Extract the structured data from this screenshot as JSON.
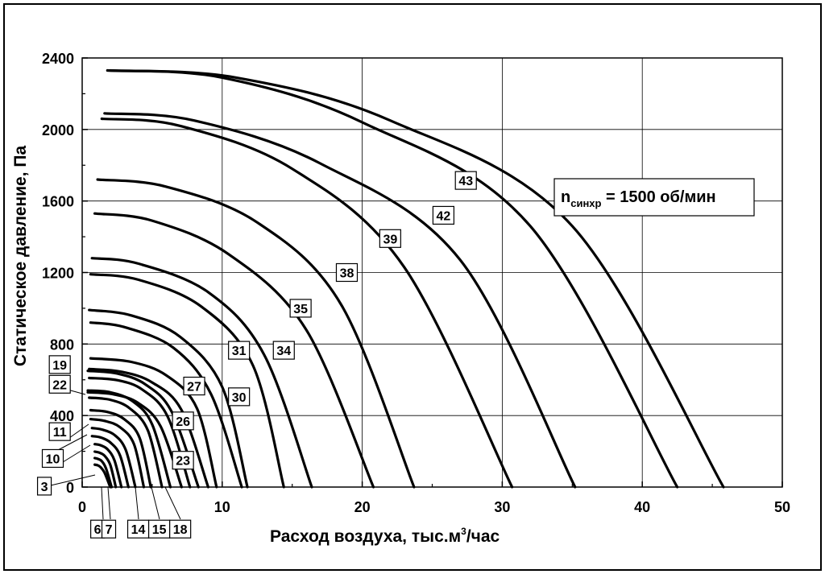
{
  "chart_data": {
    "type": "line",
    "xlabel_main": "Расход воздуха, тыс.м",
    "xlabel_sup": "3",
    "xlabel_tail": "/час",
    "ylabel": "Статическое давление, Па",
    "xlim": [
      0,
      50
    ],
    "ylim": [
      0,
      2400
    ],
    "x_ticks": [
      0,
      10,
      20,
      30,
      40,
      50
    ],
    "y_ticks": [
      0,
      400,
      800,
      1200,
      1600,
      2000,
      2400
    ],
    "grid": true,
    "annotation": {
      "n": "n",
      "sub": "синхр",
      "rest": " = 1500 об/мин"
    },
    "series": [
      {
        "name": "3",
        "x": [
          0.9,
          1.1,
          1.3,
          1.6,
          2.0
        ],
        "y": [
          125,
          122,
          112,
          80,
          0
        ]
      },
      {
        "name": "6",
        "x": [
          0.9,
          1.1,
          1.4,
          1.7,
          2.1
        ],
        "y": [
          162,
          158,
          145,
          105,
          0
        ]
      },
      {
        "name": "7",
        "x": [
          0.9,
          1.2,
          1.6,
          2.0,
          2.4
        ],
        "y": [
          198,
          193,
          175,
          125,
          0
        ]
      },
      {
        "name": "",
        "x": [
          0.9,
          1.3,
          1.8,
          2.3,
          2.8
        ],
        "y": [
          240,
          234,
          212,
          150,
          0
        ]
      },
      {
        "name": "10",
        "x": [
          0.7,
          1.3,
          2.0,
          2.7,
          3.3
        ],
        "y": [
          285,
          278,
          250,
          178,
          0
        ]
      },
      {
        "name": "11",
        "x": [
          0.7,
          1.4,
          2.3,
          3.1,
          3.8
        ],
        "y": [
          330,
          322,
          292,
          210,
          0
        ]
      },
      {
        "name": "14",
        "x": [
          0.6,
          1.6,
          2.7,
          3.7,
          4.4
        ],
        "y": [
          380,
          370,
          335,
          240,
          0
        ]
      },
      {
        "name": "15",
        "x": [
          0.6,
          1.8,
          3.0,
          4.1,
          4.9
        ],
        "y": [
          430,
          420,
          380,
          275,
          0
        ]
      },
      {
        "name": "18",
        "x": [
          0.5,
          2.0,
          3.4,
          4.7,
          5.7
        ],
        "y": [
          500,
          488,
          440,
          315,
          0
        ]
      },
      {
        "name": "22",
        "x": [
          0.4,
          2.0,
          3.6,
          5.0,
          6.3
        ],
        "y": [
          540,
          530,
          480,
          350,
          0
        ]
      },
      {
        "name": "23",
        "x": [
          0.4,
          2.3,
          4.0,
          5.6,
          7.1
        ],
        "y": [
          530,
          518,
          470,
          340,
          0
        ]
      },
      {
        "name": "",
        "x": [
          0.5,
          2.5,
          4.3,
          6.1,
          7.7
        ],
        "y": [
          610,
          598,
          545,
          395,
          0
        ]
      },
      {
        "name": "19",
        "x": [
          0.4,
          2.5,
          4.5,
          6.4,
          8.3
        ],
        "y": [
          650,
          635,
          575,
          420,
          0
        ]
      },
      {
        "name": "26",
        "x": [
          0.5,
          2.8,
          5.0,
          7.1,
          9.0
        ],
        "y": [
          660,
          645,
          585,
          430,
          0
        ]
      },
      {
        "name": "27",
        "x": [
          0.6,
          3.5,
          6.0,
          8.2,
          9.6
        ],
        "y": [
          720,
          700,
          625,
          440,
          0
        ]
      },
      {
        "name": "30",
        "x": [
          0.6,
          3.0,
          6.5,
          9.2,
          11.4
        ],
        "y": [
          920,
          895,
          780,
          520,
          0
        ]
      },
      {
        "name": "31",
        "x": [
          0.5,
          3.5,
          7.0,
          10.0,
          11.8
        ],
        "y": [
          990,
          960,
          840,
          560,
          0
        ]
      },
      {
        "name": "34",
        "x": [
          0.6,
          4.0,
          8.5,
          12.2,
          14.4
        ],
        "y": [
          1190,
          1160,
          1010,
          680,
          0
        ]
      },
      {
        "name": "",
        "x": [
          0.7,
          4.0,
          9.0,
          13.0,
          16.4
        ],
        "y": [
          1280,
          1250,
          1090,
          740,
          0
        ]
      },
      {
        "name": "35",
        "x": [
          0.9,
          5.0,
          10.5,
          16.0,
          20.8
        ],
        "y": [
          1530,
          1490,
          1300,
          880,
          0
        ]
      },
      {
        "name": "38",
        "x": [
          1.1,
          6.0,
          12.5,
          18.5,
          23.7
        ],
        "y": [
          1720,
          1680,
          1480,
          1020,
          0
        ]
      },
      {
        "name": "39",
        "x": [
          1.4,
          7.0,
          15.0,
          23.0,
          30.7
        ],
        "y": [
          2060,
          2020,
          1780,
          1230,
          0
        ]
      },
      {
        "name": "42",
        "x": [
          1.6,
          8.0,
          17.0,
          27.0,
          35.2
        ],
        "y": [
          2090,
          2050,
          1810,
          1270,
          0
        ]
      },
      {
        "name": "43",
        "x": [
          1.8,
          10.0,
          20.0,
          32.0,
          42.5
        ],
        "y": [
          2330,
          2290,
          2040,
          1460,
          0
        ]
      },
      {
        "name": "",
        "x": [
          2.0,
          11.0,
          22.0,
          35.0,
          45.8
        ],
        "y": [
          2330,
          2290,
          2050,
          1460,
          0
        ]
      }
    ],
    "labels": [
      {
        "text": "43",
        "x": 27.4,
        "y": 1715
      },
      {
        "text": "42",
        "x": 25.8,
        "y": 1520
      },
      {
        "text": "39",
        "x": 22.0,
        "y": 1390
      },
      {
        "text": "38",
        "x": 18.9,
        "y": 1200
      },
      {
        "text": "35",
        "x": 15.6,
        "y": 1000
      },
      {
        "text": "34",
        "x": 14.4,
        "y": 765
      },
      {
        "text": "31",
        "x": 11.2,
        "y": 765
      },
      {
        "text": "30",
        "x": 11.2,
        "y": 505
      },
      {
        "text": "27",
        "x": 8.0,
        "y": 565
      },
      {
        "text": "26",
        "x": 7.2,
        "y": 370
      },
      {
        "text": "23",
        "x": 7.2,
        "y": 150
      },
      {
        "text": "19",
        "x": -1.6,
        "y": 685
      },
      {
        "text": "22",
        "x": -1.6,
        "y": 575
      },
      {
        "text": "11",
        "x": -1.6,
        "y": 310
      },
      {
        "text": "10",
        "x": -2.1,
        "y": 160
      },
      {
        "text": "3",
        "x": -2.7,
        "y": 5
      },
      {
        "text": "6",
        "x": 1.1,
        "y": -235
      },
      {
        "text": "7",
        "x": 1.9,
        "y": -235
      },
      {
        "text": "14",
        "x": 4.0,
        "y": -235
      },
      {
        "text": "15",
        "x": 5.5,
        "y": -235
      },
      {
        "text": "18",
        "x": 7.0,
        "y": -235
      }
    ]
  }
}
